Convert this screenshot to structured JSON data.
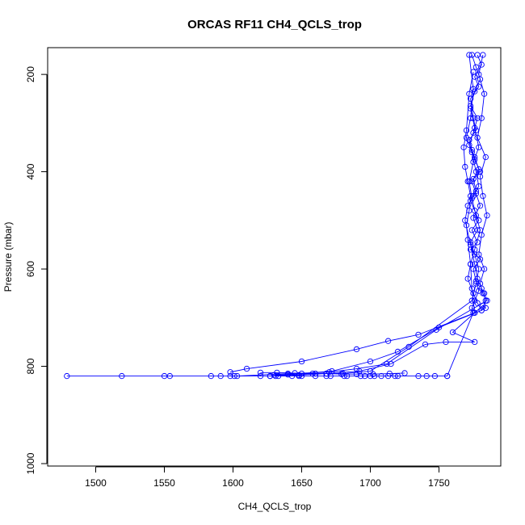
{
  "chart_data": {
    "type": "line",
    "title": "ORCAS RF11 CH4_QCLS_trop",
    "xlabel": "CH4_QCLS_trop",
    "ylabel": "Pressure (mbar)",
    "xlim": [
      1465,
      1795
    ],
    "ylim": [
      1005,
      145
    ],
    "y_inverted": true,
    "x_ticks": [
      1500,
      1550,
      1600,
      1650,
      1700,
      1750
    ],
    "x_tick_labels": [
      "1500",
      "1550",
      "1600",
      "1650",
      "1700",
      "1750"
    ],
    "y_ticks": [
      200,
      400,
      600,
      800,
      1000
    ],
    "y_tick_labels": [
      "200",
      "400",
      "600",
      "800",
      "1000"
    ],
    "grid": false,
    "legend": "none",
    "marker": "open-circle",
    "series_color": "#0000ff",
    "series": [
      {
        "x": [
          1778,
          1781,
          1776,
          1779,
          1773,
          1775,
          1777,
          1772,
          1774,
          1776,
          1780,
          1775,
          1777,
          1773,
          1776,
          1779,
          1774,
          1778,
          1773,
          1780,
          1775,
          1777,
          1779,
          1776,
          1774,
          1775,
          1756
        ],
        "y": [
          160,
          180,
          205,
          225,
          250,
          290,
          315,
          335,
          355,
          375,
          400,
          415,
          440,
          460,
          480,
          500,
          520,
          545,
          560,
          580,
          600,
          625,
          645,
          665,
          680,
          690,
          820
        ]
      },
      {
        "x": [
          1774,
          1777,
          1780,
          1776,
          1773,
          1778,
          1775,
          1772,
          1776,
          1779,
          1774,
          1777,
          1780,
          1775,
          1778,
          1773,
          1776,
          1779,
          1777,
          1774,
          1728,
          1700,
          1680,
          1660,
          1640,
          1631
        ],
        "y": [
          160,
          185,
          210,
          235,
          265,
          290,
          320,
          345,
          370,
          395,
          420,
          445,
          470,
          495,
          520,
          545,
          570,
          600,
          630,
          665,
          760,
          810,
          815,
          815,
          817,
          820
        ]
      },
      {
        "x": [
          1775,
          1772,
          1770,
          1768,
          1769,
          1771,
          1773,
          1772,
          1770,
          1771,
          1773,
          1774,
          1776,
          1735,
          1713,
          1690,
          1650,
          1610,
          1598
        ],
        "y": [
          195,
          240,
          315,
          350,
          390,
          420,
          450,
          480,
          510,
          540,
          590,
          640,
          690,
          735,
          748,
          765,
          790,
          805,
          812
        ]
      },
      {
        "x": [
          1782,
          1779,
          1783,
          1781,
          1778,
          1784,
          1780,
          1782,
          1785,
          1781,
          1779,
          1783,
          1780,
          1782,
          1784,
          1781,
          1750,
          1720,
          1700,
          1672,
          1650,
          1630
        ],
        "y": [
          160,
          200,
          240,
          290,
          330,
          370,
          410,
          450,
          490,
          530,
          570,
          600,
          630,
          650,
          665,
          685,
          720,
          770,
          790,
          810,
          815,
          818
        ]
      },
      {
        "x": [
          1772,
          1775,
          1773,
          1770,
          1774,
          1777,
          1779,
          1775,
          1771,
          1769,
          1773,
          1776,
          1778,
          1781,
          1783,
          1785,
          1748,
          1712,
          1690,
          1670,
          1640,
          1603
        ],
        "y": [
          160,
          230,
          290,
          330,
          360,
          400,
          430,
          450,
          470,
          500,
          550,
          590,
          620,
          640,
          650,
          665,
          725,
          795,
          805,
          812,
          815,
          820
        ]
      },
      {
        "x": [
          1773,
          1776,
          1779,
          1775,
          1772,
          1774,
          1777,
          1780,
          1776,
          1773,
          1771,
          1775,
          1778,
          1781,
          1784,
          1782,
          1776,
          1760,
          1776,
          1755,
          1740,
          1715,
          1692,
          1668,
          1648,
          1627
        ],
        "y": [
          270,
          310,
          350,
          380,
          420,
          455,
          490,
          520,
          560,
          590,
          620,
          650,
          670,
          685,
          680,
          675,
          690,
          730,
          750,
          750,
          755,
          795,
          810,
          815,
          818,
          820
        ]
      },
      {
        "x": [
          1479,
          1519,
          1550,
          1554,
          1584,
          1591,
          1598,
          1601,
          1620,
          1627,
          1633,
          1643,
          1648,
          1650,
          1660,
          1668,
          1671,
          1681,
          1683,
          1693,
          1696,
          1700,
          1703,
          1708,
          1713,
          1718,
          1720,
          1735,
          1741,
          1747,
          1756
        ],
        "y": [
          820,
          820,
          820,
          820,
          820,
          820,
          820,
          820,
          820,
          820,
          820,
          820,
          820,
          820,
          820,
          820,
          820,
          820,
          820,
          820,
          820,
          820,
          820,
          820,
          820,
          820,
          820,
          820,
          820,
          820,
          820
        ]
      },
      {
        "x": [
          1620,
          1632,
          1645,
          1658,
          1668,
          1679,
          1690,
          1702,
          1714,
          1725
        ],
        "y": [
          813,
          813,
          814,
          815,
          815,
          816,
          816,
          816,
          815,
          814
        ]
      }
    ]
  }
}
